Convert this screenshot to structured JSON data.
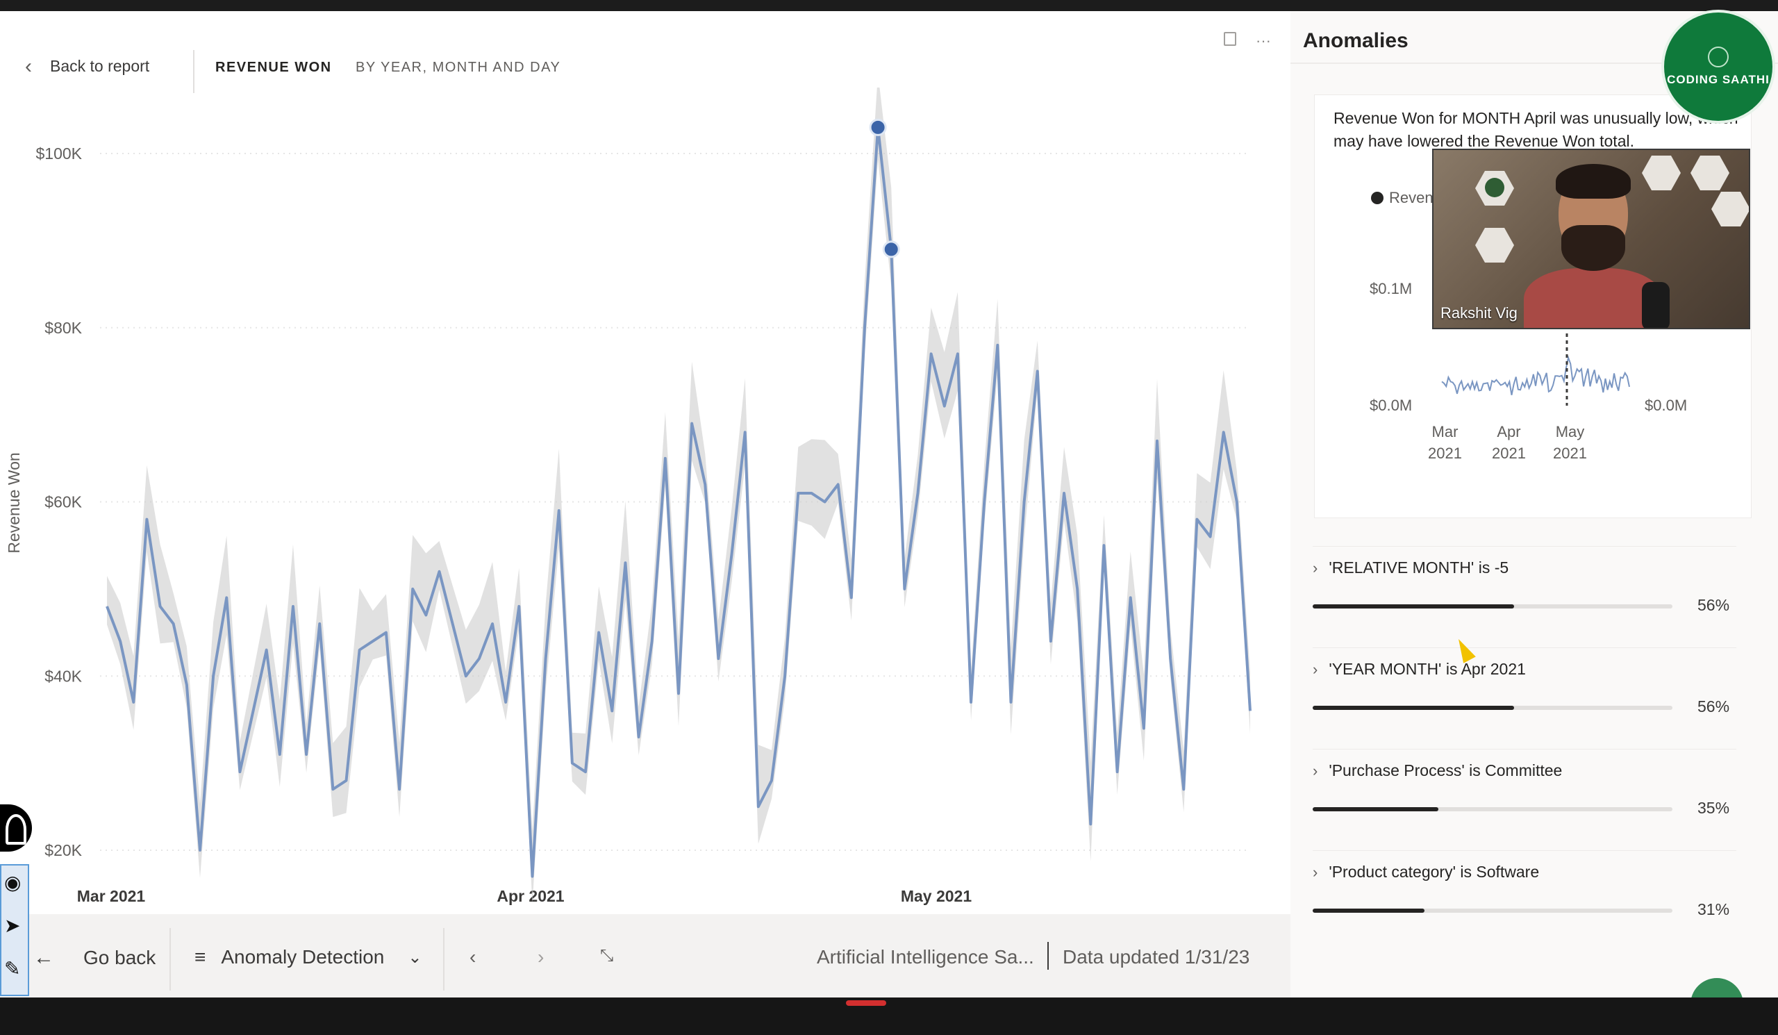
{
  "header": {
    "back_label": "Back to report",
    "title": "REVENUE WON",
    "subtitle": "BY YEAR, MONTH AND DAY",
    "more_icon": "ellipsis-icon",
    "copy_icon": "copy-visual-icon"
  },
  "chart_data": {
    "type": "line",
    "ylabel": "Revenue Won",
    "y_ticks": [
      "$100K",
      "$80K",
      "$60K",
      "$40K",
      "$20K"
    ],
    "x_ticks": [
      "Mar 2021",
      "Apr 2021",
      "May 2021"
    ],
    "ylim": [
      20000,
      105000
    ],
    "grid": true,
    "series": [
      {
        "name": "Revenue Won",
        "values": [
          48000,
          44000,
          37000,
          58000,
          48000,
          46000,
          39000,
          20000,
          40000,
          49000,
          29000,
          36000,
          43000,
          31000,
          48000,
          31000,
          46000,
          27000,
          28000,
          43000,
          44000,
          45000,
          27000,
          50000,
          47000,
          52000,
          46000,
          40000,
          42000,
          46000,
          37000,
          48000,
          17000,
          42000,
          59000,
          30000,
          29000,
          45000,
          36000,
          53000,
          33000,
          44000,
          65000,
          38000,
          69000,
          62000,
          42000,
          54000,
          68000,
          25000,
          28000,
          40000,
          61000,
          61000,
          60000,
          62000,
          49000,
          80000,
          103000,
          89000,
          50000,
          61000,
          77000,
          71000,
          77000,
          37000,
          60000,
          78000,
          37000,
          60000,
          75000,
          44000,
          61000,
          50000,
          23000,
          55000,
          29000,
          49000,
          34000,
          67000,
          42000,
          27000,
          58000,
          56000,
          68000,
          60000,
          36000
        ]
      }
    ],
    "anomalies": [
      {
        "index": 58,
        "value": 103000
      },
      {
        "index": 59,
        "value": 89000
      }
    ]
  },
  "footer": {
    "go_back": "Go back",
    "page_name": "Anomaly Detection",
    "report_name": "Artificial Intelligence Sa...",
    "data_updated": "Data updated 1/31/23"
  },
  "pane": {
    "title": "Anomalies",
    "description": "Revenue Won for MONTH April was unusually low, which may have lowered the Revenue Won total.",
    "legend_label": "Reven",
    "mini_y_top": "$0.1M",
    "mini_y_bottom_left": "$0.0M",
    "mini_y_bottom_right": "$0.0M",
    "mini_x": [
      {
        "month": "Mar",
        "year": "2021"
      },
      {
        "month": "Apr",
        "year": "2021"
      },
      {
        "month": "May",
        "year": "2021"
      }
    ],
    "factors": [
      {
        "label": "'RELATIVE MONTH' is -5",
        "percent": "56%",
        "strength": 0.56
      },
      {
        "label": "'YEAR MONTH' is Apr 2021",
        "percent": "56%",
        "strength": 0.56
      },
      {
        "label": "'Purchase Process' is Committee",
        "percent": "35%",
        "strength": 0.35
      },
      {
        "label": "'Product category' is Software",
        "percent": "31%",
        "strength": 0.31
      }
    ]
  },
  "video": {
    "participant_name": "Rakshit Vig"
  },
  "logo": {
    "text": "CODING SAATHI"
  },
  "colors": {
    "line": "#7a96c2",
    "band": "#c8c8c8",
    "anomaly": "#3b64a8",
    "bar_fill": "#252423",
    "logo_green": "#0f7a3b"
  }
}
